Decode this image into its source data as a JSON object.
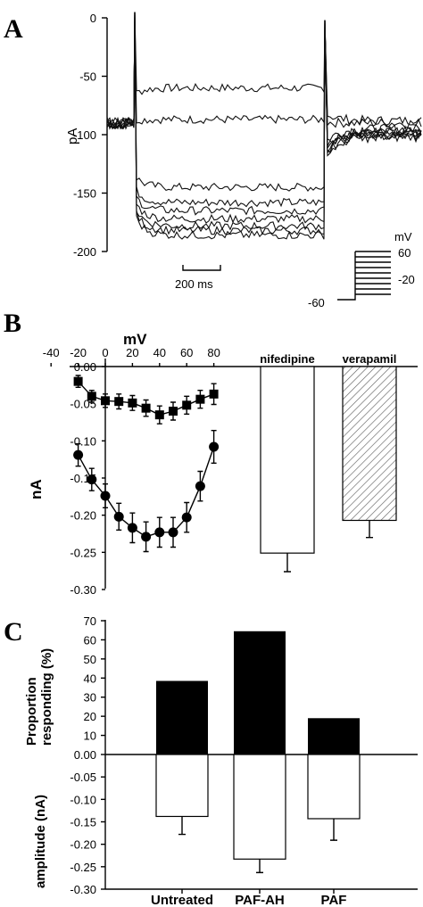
{
  "panels": {
    "a": "A",
    "b": "B",
    "c": "C"
  },
  "chart_data": [
    {
      "panel": "A",
      "type": "line",
      "ylabel": "pA",
      "yticks": [
        0,
        -50,
        -100,
        -150,
        -200
      ],
      "ylim": [
        -200,
        0
      ],
      "scalebar": "200  ms",
      "protocol": {
        "unit": "mV",
        "labels": [
          "60",
          "-20",
          "-60"
        ]
      },
      "traces": [
        {
          "holding": -90,
          "step": -60,
          "tail": -88
        },
        {
          "holding": -90,
          "step": -87,
          "tail": -90
        },
        {
          "holding": -90,
          "step": -145,
          "tail": -95
        },
        {
          "holding": -90,
          "step": -158,
          "tail": -97
        },
        {
          "holding": -90,
          "step": -165,
          "tail": -98
        },
        {
          "holding": -90,
          "step": -172,
          "tail": -99
        },
        {
          "holding": -90,
          "step": -178,
          "tail": -100
        },
        {
          "holding": -90,
          "step": -182,
          "tail": -101
        },
        {
          "holding": -90,
          "step": -186,
          "tail": -102
        }
      ]
    },
    {
      "panel": "B",
      "type": "line",
      "xlabel": "mV",
      "ylabel": "nA",
      "xticks": [
        -40,
        -20,
        0,
        20,
        40,
        60,
        80
      ],
      "yticks": [
        "0.00",
        "-0.05",
        "-0.10",
        "-0.15",
        "-0.20",
        "-0.25",
        "-0.30"
      ],
      "xlim": [
        -40,
        80
      ],
      "ylim": [
        -0.3,
        0
      ],
      "series": [
        {
          "marker": "square",
          "x": [
            -20,
            -10,
            0,
            10,
            20,
            30,
            40,
            50,
            60,
            70,
            80
          ],
          "y": [
            -0.02,
            -0.04,
            -0.046,
            -0.047,
            -0.049,
            -0.056,
            -0.065,
            -0.06,
            -0.052,
            -0.044,
            -0.037
          ],
          "err": [
            0.008,
            0.008,
            0.009,
            0.01,
            0.01,
            0.011,
            0.012,
            0.012,
            0.012,
            0.012,
            0.014
          ]
        },
        {
          "marker": "circle",
          "x": [
            -20,
            -10,
            0,
            10,
            20,
            30,
            40,
            50,
            60,
            70,
            80
          ],
          "y": [
            -0.119,
            -0.152,
            -0.174,
            -0.202,
            -0.217,
            -0.229,
            -0.223,
            -0.223,
            -0.203,
            -0.161,
            -0.108
          ],
          "err": [
            0.015,
            0.015,
            0.016,
            0.018,
            0.02,
            0.02,
            0.02,
            0.02,
            0.02,
            0.02,
            0.022
          ]
        }
      ]
    },
    {
      "panel": "B",
      "type": "bar",
      "categories": [
        "nifedipine",
        "verapamil"
      ],
      "values": [
        -0.251,
        -0.207
      ],
      "errors": [
        0.025,
        0.023
      ],
      "fills": [
        "#ffffff",
        "hatch"
      ],
      "ylim": [
        -0.3,
        0
      ]
    },
    {
      "panel": "C",
      "type": "bar",
      "categories": [
        "Untreated",
        "PAF-AH",
        "PAF"
      ],
      "ylabel_top": "Proportion responding (%)",
      "ylabel_bottom": "amplitude (nA)",
      "yticks_top": [
        "70",
        "60",
        "50",
        "40",
        "30",
        "20",
        "10",
        "0.00"
      ],
      "yticks_bottom": [
        "-0.05",
        "-0.10",
        "-0.15",
        "-0.20",
        "-0.25",
        "-0.30"
      ],
      "top": {
        "values": [
          38.5,
          64.5,
          19
        ],
        "ylim": [
          0,
          70
        ]
      },
      "bottom": {
        "values": [
          -0.138,
          -0.233,
          -0.143
        ],
        "errors": [
          0.04,
          0.03,
          0.048
        ],
        "ylim": [
          -0.3,
          0
        ]
      }
    }
  ]
}
